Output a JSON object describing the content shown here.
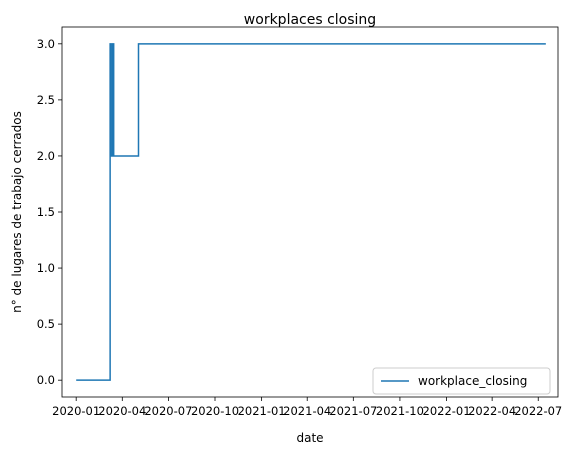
{
  "chart_data": {
    "type": "line",
    "title": "workplaces closing",
    "xlabel": "date",
    "ylabel": "n° de lugares de trabajo cerrados",
    "x_ticks": [
      "2020-01",
      "2020-04",
      "2020-07",
      "2020-10",
      "2021-01",
      "2021-04",
      "2021-07",
      "2021-10",
      "2022-01",
      "2022-04",
      "2022-07"
    ],
    "y_ticks": [
      "0.0",
      "0.5",
      "1.0",
      "1.5",
      "2.0",
      "2.5",
      "3.0"
    ],
    "xlim": [
      "2019-12-04",
      "2022-08-09"
    ],
    "ylim": [
      -0.15,
      3.15
    ],
    "grid": false,
    "legend_position": "bottom-right",
    "series": [
      {
        "name": "workplace_closing",
        "color": "#1f77b4",
        "points": [
          [
            "2020-01-01",
            0
          ],
          [
            "2020-03-08",
            0
          ],
          [
            "2020-03-08",
            3
          ],
          [
            "2020-03-10",
            3
          ],
          [
            "2020-03-10",
            2
          ],
          [
            "2020-03-13",
            2
          ],
          [
            "2020-03-13",
            3
          ],
          [
            "2020-03-15",
            3
          ],
          [
            "2020-03-15",
            2
          ],
          [
            "2020-05-03",
            2
          ],
          [
            "2020-05-03",
            3
          ],
          [
            "2022-07-16",
            3
          ]
        ]
      }
    ]
  }
}
